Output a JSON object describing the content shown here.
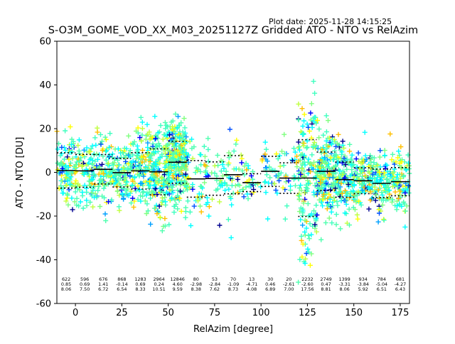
{
  "plot_date": "Plot date: 2025-11-28 14:15:25",
  "chart_data": {
    "type": "scatter",
    "title": "S-O3M_GOME_VOD_XX_M03_20251127Z Gridded ATO - NTO vs RelAzim",
    "xlabel": "RelAzim [degree]",
    "ylabel": "ATO - NTO [DU]",
    "xlim": [
      -10,
      180
    ],
    "ylim": [
      -60,
      60
    ],
    "x_ticks": [
      0,
      25,
      50,
      75,
      100,
      125,
      150,
      175
    ],
    "y_ticks": [
      -60,
      -40,
      -20,
      0,
      20,
      40,
      60
    ],
    "grid": false,
    "colormap": "jet",
    "marker": "+",
    "bins": [
      {
        "center": -5,
        "count": "622",
        "mean": "0.85",
        "std": "8.06"
      },
      {
        "center": 5,
        "count": "596",
        "mean": "0.69",
        "std": "7.50"
      },
      {
        "center": 15,
        "count": "676",
        "mean": "1.41",
        "std": "6.72"
      },
      {
        "center": 25,
        "count": "868",
        "mean": "-0.14",
        "std": "6.54"
      },
      {
        "center": 35,
        "count": "1283",
        "mean": "0.69",
        "std": "8.33"
      },
      {
        "center": 45,
        "count": "2964",
        "mean": "0.24",
        "std": "10.51"
      },
      {
        "center": 55,
        "count": "12846",
        "mean": "4.60",
        "std": "9.59"
      },
      {
        "center": 65,
        "count": "80",
        "mean": "-2.98",
        "std": "8.38"
      },
      {
        "center": 75,
        "count": "53",
        "mean": "-2.84",
        "std": "7.62"
      },
      {
        "center": 85,
        "count": "70",
        "mean": "-1.09",
        "std": "8.73"
      },
      {
        "center": 95,
        "count": "13",
        "mean": "-4.71",
        "std": "4.08"
      },
      {
        "center": 105,
        "count": "30",
        "mean": "0.46",
        "std": "6.89"
      },
      {
        "center": 115,
        "count": "20",
        "mean": "-2.61",
        "std": "7.00"
      },
      {
        "center": 125,
        "count": "2232",
        "mean": "-2.60",
        "std": "17.56"
      },
      {
        "center": 135,
        "count": "2749",
        "mean": "0.47",
        "std": "8.81"
      },
      {
        "center": 145,
        "count": "1399",
        "mean": "-3.31",
        "std": "8.06"
      },
      {
        "center": 155,
        "count": "934",
        "mean": "-3.84",
        "std": "5.92"
      },
      {
        "center": 165,
        "count": "784",
        "mean": "-5.04",
        "std": "6.51"
      },
      {
        "center": 175,
        "count": "681",
        "mean": "-4.27",
        "std": "6.43"
      }
    ],
    "scatter_colors": [
      "#00008f",
      "#0000ff",
      "#0050ff",
      "#00a0ff",
      "#00ffff",
      "#3fffbf",
      "#4fffaf",
      "#7fff7f",
      "#bfff3f",
      "#ffff00",
      "#ffbf00"
    ]
  }
}
